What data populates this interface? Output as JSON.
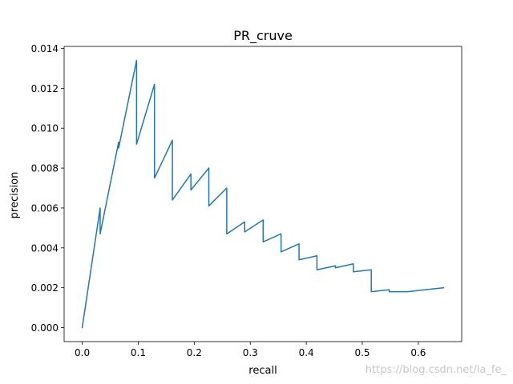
{
  "chart_data": {
    "type": "line",
    "title": "PR_cruve",
    "xlabel": "recall",
    "ylabel": "precision",
    "xlim": [
      -0.0323,
      0.6774
    ],
    "ylim": [
      -0.0007,
      0.0141
    ],
    "xticks": [
      0.0,
      0.1,
      0.2,
      0.3,
      0.4,
      0.5,
      0.6
    ],
    "xtick_labels": [
      "0.0",
      "0.1",
      "0.2",
      "0.3",
      "0.4",
      "0.5",
      "0.6"
    ],
    "yticks": [
      0.0,
      0.002,
      0.004,
      0.006,
      0.008,
      0.01,
      0.012,
      0.014
    ],
    "ytick_labels": [
      "0.000",
      "0.002",
      "0.004",
      "0.006",
      "0.008",
      "0.010",
      "0.012",
      "0.014"
    ],
    "grid": false,
    "series": [
      {
        "color": "#1f77b4",
        "points": [
          [
            0.0,
            0.0
          ],
          [
            0.032,
            0.006
          ],
          [
            0.032,
            0.0047
          ],
          [
            0.065,
            0.0093
          ],
          [
            0.065,
            0.009
          ],
          [
            0.097,
            0.0134
          ],
          [
            0.097,
            0.0092
          ],
          [
            0.129,
            0.0122
          ],
          [
            0.129,
            0.0075
          ],
          [
            0.161,
            0.0094
          ],
          [
            0.161,
            0.0064
          ],
          [
            0.194,
            0.0077
          ],
          [
            0.194,
            0.0069
          ],
          [
            0.226,
            0.008
          ],
          [
            0.226,
            0.0061
          ],
          [
            0.258,
            0.007
          ],
          [
            0.258,
            0.0047
          ],
          [
            0.29,
            0.0053
          ],
          [
            0.29,
            0.0048
          ],
          [
            0.323,
            0.0054
          ],
          [
            0.323,
            0.0043
          ],
          [
            0.355,
            0.0047
          ],
          [
            0.355,
            0.0038
          ],
          [
            0.387,
            0.0042
          ],
          [
            0.387,
            0.0034
          ],
          [
            0.419,
            0.0036
          ],
          [
            0.419,
            0.0029
          ],
          [
            0.452,
            0.0031
          ],
          [
            0.452,
            0.003
          ],
          [
            0.484,
            0.0032
          ],
          [
            0.484,
            0.0028
          ],
          [
            0.516,
            0.0029
          ],
          [
            0.516,
            0.0018
          ],
          [
            0.548,
            0.0019
          ],
          [
            0.548,
            0.0018
          ],
          [
            0.581,
            0.0018
          ],
          [
            0.581,
            0.0018
          ],
          [
            0.613,
            0.0019
          ],
          [
            0.613,
            0.0019
          ],
          [
            0.645,
            0.002
          ]
        ]
      }
    ]
  },
  "watermark": "https://blog.csdn.net/la_fe_",
  "colors": {
    "axes": "#000000",
    "line": "#1f77b4",
    "background": "#ffffff",
    "watermark": "#c8c8c8"
  }
}
